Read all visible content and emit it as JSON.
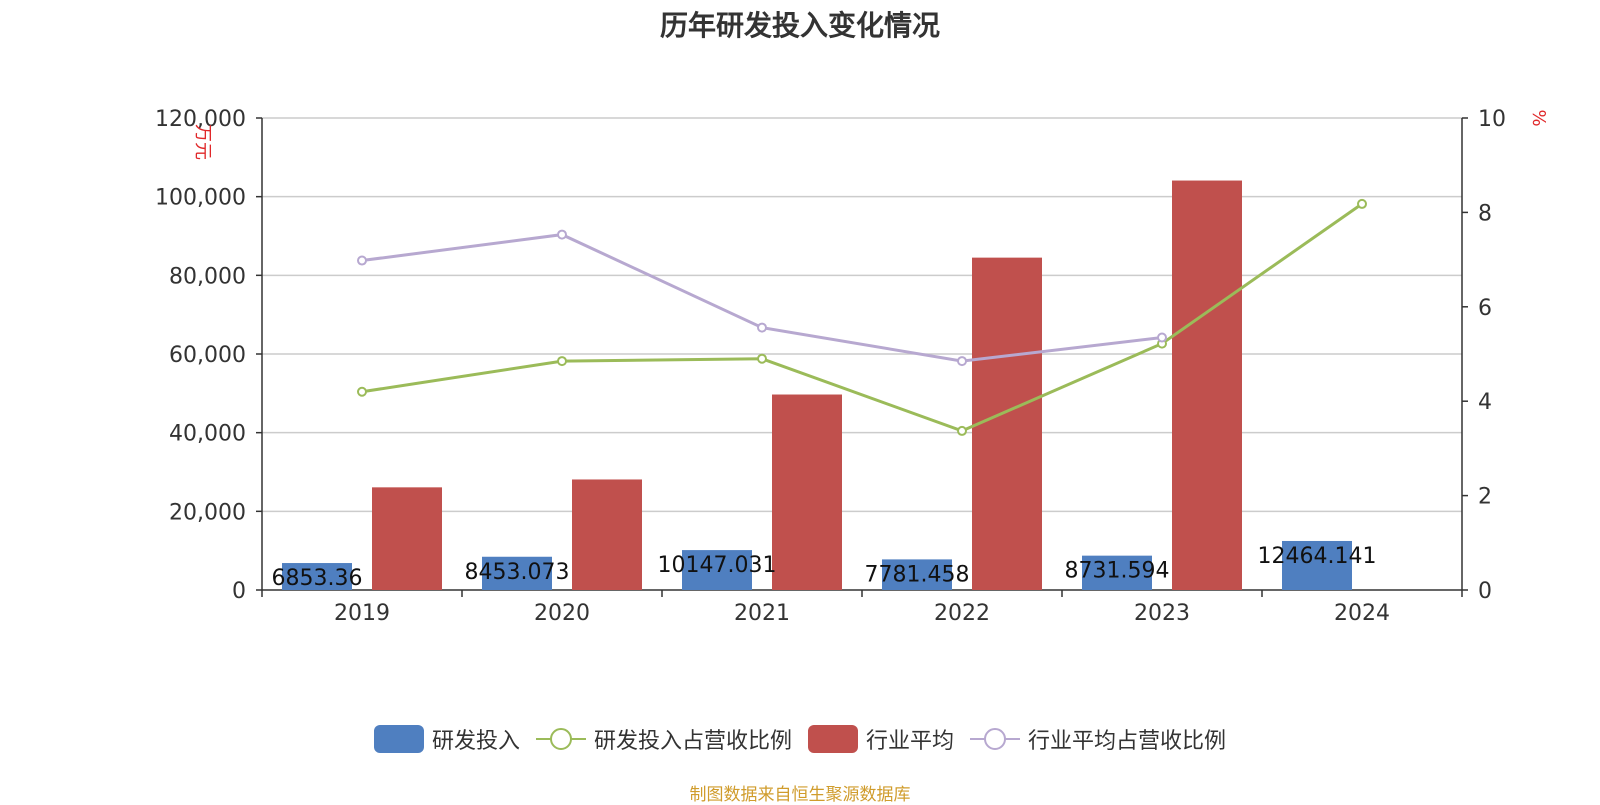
{
  "chart_data": {
    "type": "bar",
    "title": "历年研发投入变化情况",
    "categories": [
      "2019",
      "2020",
      "2021",
      "2022",
      "2023",
      "2024"
    ],
    "y_left": {
      "unit": "万元",
      "ylim": [
        0,
        120000
      ],
      "ticks": [
        0,
        20000,
        40000,
        60000,
        80000,
        100000,
        120000
      ],
      "tick_labels": [
        "0",
        "20,000",
        "40,000",
        "60,000",
        "80,000",
        "100,000",
        "120,000"
      ]
    },
    "y_right": {
      "unit": "%",
      "ylim": [
        0,
        10
      ],
      "ticks": [
        0,
        2,
        4,
        6,
        8,
        10
      ],
      "tick_labels": [
        "0",
        "2",
        "4",
        "6",
        "8",
        "10"
      ]
    },
    "series": [
      {
        "name": "研发投入",
        "type": "bar",
        "axis": "left",
        "color": "#4f7fc0",
        "values": [
          6853.36,
          8453.073,
          10147.031,
          7781.458,
          8731.594,
          12464.141
        ],
        "labels": [
          "6853.36",
          "8453.073",
          "10147.031",
          "7781.458",
          "8731.594",
          "12464.141"
        ]
      },
      {
        "name": "研发投入占营收比例",
        "type": "line",
        "axis": "right",
        "color": "#9bbb59",
        "values": [
          4.2,
          4.85,
          4.9,
          3.37,
          5.22,
          8.18
        ]
      },
      {
        "name": "行业平均",
        "type": "bar",
        "axis": "left",
        "color": "#c0504d",
        "values": [
          26100,
          28100,
          49700,
          84500,
          104100,
          null
        ]
      },
      {
        "name": "行业平均占营收比例",
        "type": "line",
        "axis": "right",
        "color": "#b7a8d0",
        "values": [
          6.98,
          7.53,
          5.56,
          4.85,
          5.35,
          null
        ]
      }
    ],
    "grid": true,
    "legend_position": "bottom"
  },
  "source_note": "制图数据来自恒生聚源数据库"
}
